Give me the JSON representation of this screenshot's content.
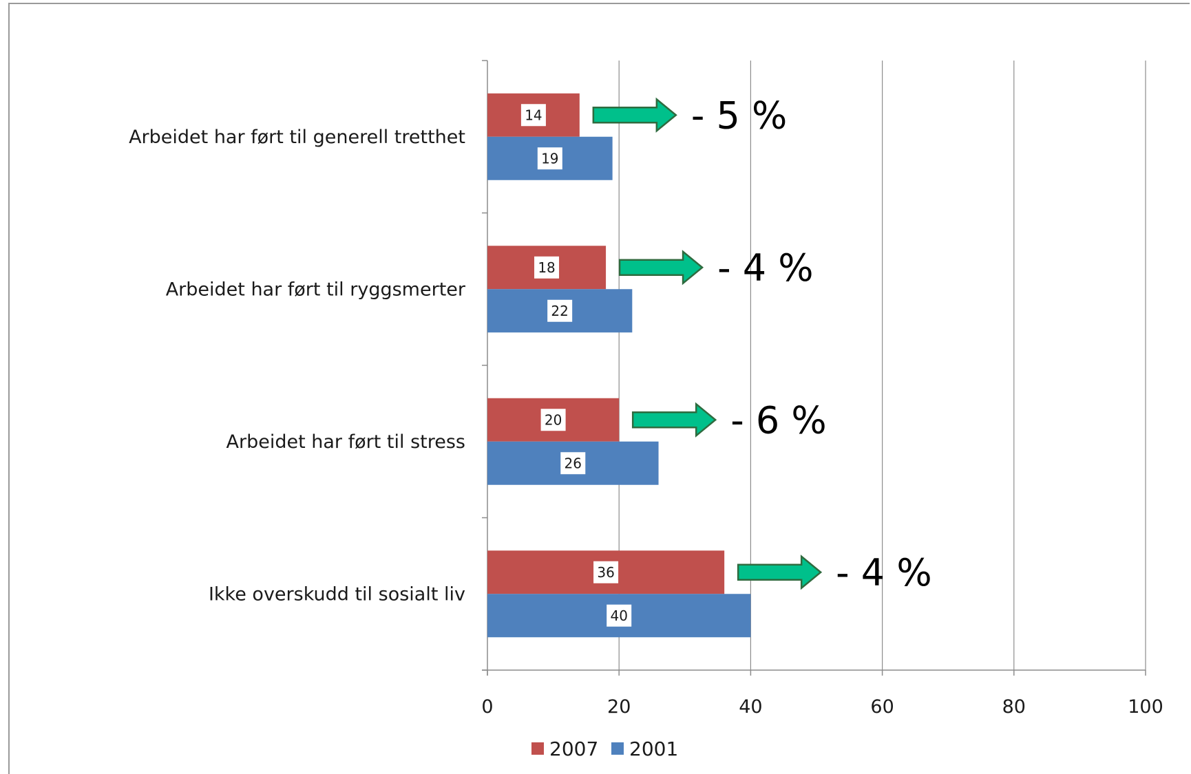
{
  "chart_data": {
    "type": "bar",
    "orientation": "horizontal",
    "categories": [
      "Arbeidet har ført til generell tretthet",
      "Arbeidet har ført til ryggsmerter",
      "Arbeidet har ført til stress",
      "Ikke overskudd til sosialt liv"
    ],
    "series": [
      {
        "name": "2007",
        "color": "#c0504d",
        "values": [
          14,
          18,
          20,
          36
        ]
      },
      {
        "name": "2001",
        "color": "#4f81bd",
        "values": [
          19,
          22,
          26,
          40
        ]
      }
    ],
    "xlim": [
      0,
      100
    ],
    "xticks": [
      0,
      20,
      40,
      60,
      80,
      100
    ],
    "grid": "vertical",
    "legend_position": "bottom",
    "annotations": [
      {
        "category": "Arbeidet har ført til generell tretthet",
        "text": "- 5 %"
      },
      {
        "category": "Arbeidet har ført til ryggsmerter",
        "text": "- 4 %"
      },
      {
        "category": "Arbeidet har ført til stress",
        "text": "- 6 %"
      },
      {
        "category": "Ikke overskudd til sosialt liv",
        "text": "- 4 %"
      }
    ],
    "annotation_arrow_color": "#00c08b"
  }
}
